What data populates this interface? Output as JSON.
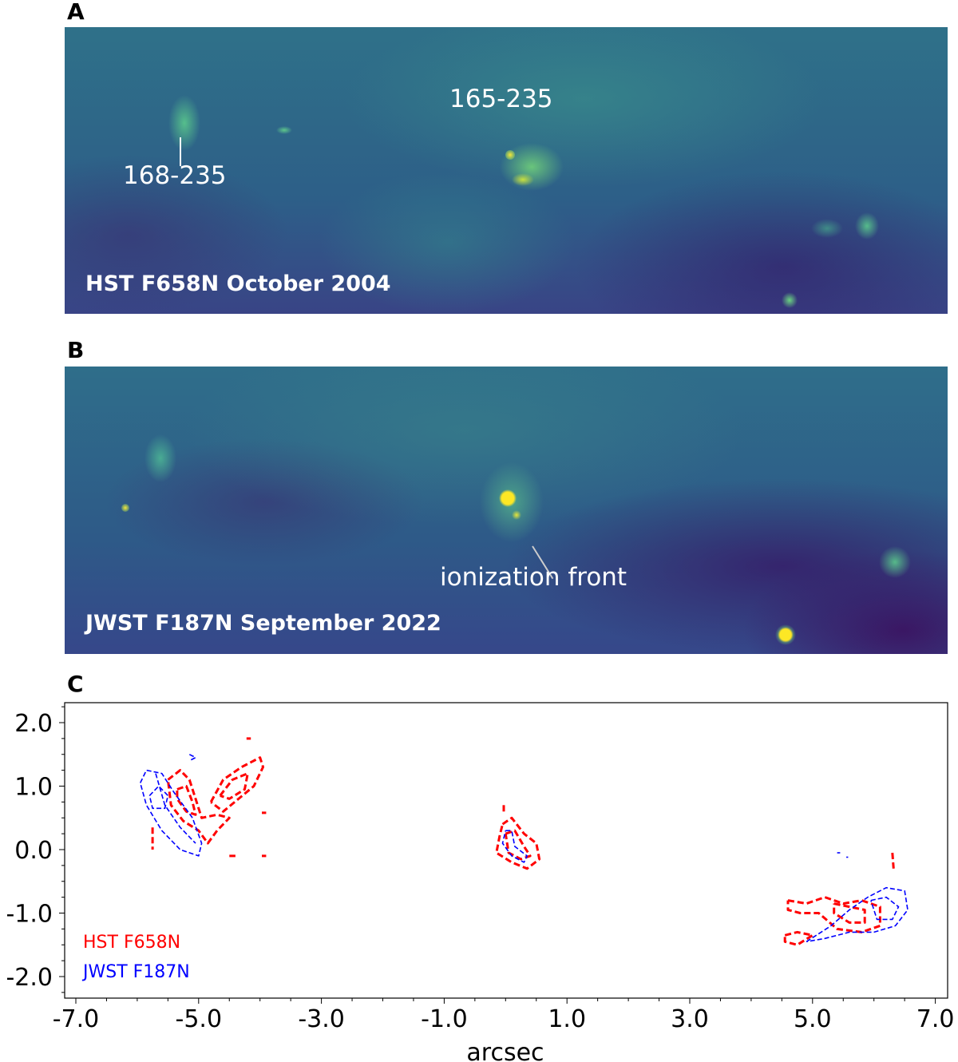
{
  "panels": {
    "a": {
      "letter": "A",
      "caption": "HST F658N October 2004",
      "labels": [
        "165-235",
        "168-235"
      ]
    },
    "b": {
      "letter": "B",
      "caption": "JWST F187N September 2022",
      "labels": [
        "ionization front"
      ]
    },
    "c": {
      "letter": "C"
    }
  },
  "colors": {
    "hst": "#ff0000",
    "jwst": "#0000ff"
  },
  "chart_data": {
    "type": "contour",
    "xlabel": "arcsec",
    "ylabel": "",
    "xlim": [
      -7.2,
      7.2
    ],
    "ylim": [
      -2.35,
      2.35
    ],
    "xticks": [
      "-7.0",
      "-5.0",
      "-3.0",
      "-1.0",
      "1.0",
      "3.0",
      "5.0",
      "7.0"
    ],
    "yticks": [
      "2.0",
      "1.0",
      "0.0",
      "-1.0",
      "-2.0"
    ],
    "grid": false,
    "legend": "bottom-left",
    "series": [
      {
        "name": "HST F658N",
        "color": "#ff0000",
        "contours": [
          [
            [
              -5.5,
              1.1
            ],
            [
              -5.3,
              1.25
            ],
            [
              -5.15,
              1.1
            ],
            [
              -5.05,
              0.8
            ],
            [
              -4.95,
              0.5
            ],
            [
              -4.7,
              0.55
            ],
            [
              -4.5,
              0.5
            ],
            [
              -4.7,
              0.3
            ],
            [
              -4.85,
              0.1
            ],
            [
              -5.0,
              0.3
            ],
            [
              -5.25,
              0.45
            ],
            [
              -5.45,
              0.7
            ],
            [
              -5.5,
              1.1
            ]
          ],
          [
            [
              -5.35,
              0.95
            ],
            [
              -5.2,
              1.0
            ],
            [
              -5.1,
              0.75
            ],
            [
              -5.05,
              0.55
            ],
            [
              -5.2,
              0.6
            ],
            [
              -5.35,
              0.8
            ],
            [
              -5.35,
              0.95
            ]
          ],
          [
            [
              -4.8,
              0.75
            ],
            [
              -4.6,
              1.1
            ],
            [
              -4.3,
              1.3
            ],
            [
              -4.0,
              1.45
            ],
            [
              -3.95,
              1.3
            ],
            [
              -4.1,
              1.0
            ],
            [
              -4.35,
              0.8
            ],
            [
              -4.6,
              0.6
            ],
            [
              -4.8,
              0.75
            ]
          ],
          [
            [
              -4.65,
              0.85
            ],
            [
              -4.45,
              1.1
            ],
            [
              -4.2,
              1.2
            ],
            [
              -4.25,
              0.95
            ],
            [
              -4.5,
              0.8
            ],
            [
              -4.65,
              0.85
            ]
          ],
          [
            [
              -5.75,
              0.35
            ],
            [
              -5.75,
              0.0
            ]
          ],
          [
            [
              -4.22,
              1.75
            ],
            [
              -4.15,
              1.75
            ]
          ],
          [
            [
              -3.97,
              0.58
            ],
            [
              -3.9,
              0.58
            ]
          ],
          [
            [
              -4.5,
              -0.1
            ],
            [
              -4.4,
              -0.1
            ]
          ],
          [
            [
              -3.97,
              -0.1
            ],
            [
              -3.9,
              -0.1
            ]
          ],
          [
            [
              -0.05,
              0.4
            ],
            [
              0.1,
              0.5
            ],
            [
              0.3,
              0.25
            ],
            [
              0.5,
              0.1
            ],
            [
              0.55,
              -0.15
            ],
            [
              0.35,
              -0.3
            ],
            [
              0.1,
              -0.2
            ],
            [
              -0.15,
              -0.05
            ],
            [
              -0.1,
              0.2
            ],
            [
              -0.05,
              0.4
            ]
          ],
          [
            [
              0.0,
              0.25
            ],
            [
              0.15,
              0.3
            ],
            [
              0.3,
              0.05
            ],
            [
              0.4,
              -0.1
            ],
            [
              0.25,
              -0.15
            ],
            [
              0.05,
              -0.05
            ],
            [
              0.0,
              0.25
            ]
          ],
          [
            [
              -0.03,
              0.7
            ],
            [
              -0.03,
              0.6
            ]
          ],
          [
            [
              4.6,
              -0.8
            ],
            [
              4.9,
              -0.85
            ],
            [
              5.2,
              -0.75
            ],
            [
              5.5,
              -0.85
            ],
            [
              5.8,
              -0.8
            ],
            [
              6.1,
              -0.9
            ],
            [
              6.1,
              -1.2
            ],
            [
              5.8,
              -1.3
            ],
            [
              5.4,
              -1.25
            ],
            [
              5.1,
              -1.0
            ],
            [
              4.8,
              -1.0
            ],
            [
              4.6,
              -0.95
            ],
            [
              4.6,
              -0.8
            ]
          ],
          [
            [
              5.35,
              -0.85
            ],
            [
              5.6,
              -0.9
            ],
            [
              5.85,
              -0.95
            ],
            [
              5.85,
              -1.15
            ],
            [
              5.6,
              -1.15
            ],
            [
              5.35,
              -1.0
            ],
            [
              5.35,
              -0.85
            ]
          ],
          [
            [
              4.55,
              -1.35
            ],
            [
              4.75,
              -1.3
            ],
            [
              5.0,
              -1.35
            ],
            [
              4.75,
              -1.5
            ],
            [
              4.55,
              -1.45
            ],
            [
              4.55,
              -1.35
            ]
          ],
          [
            [
              6.3,
              -0.05
            ],
            [
              6.32,
              -0.3
            ]
          ]
        ]
      },
      {
        "name": "JWST F187N",
        "color": "#0000ff",
        "contours": [
          [
            [
              -5.95,
              1.05
            ],
            [
              -5.85,
              1.25
            ],
            [
              -5.6,
              1.2
            ],
            [
              -5.4,
              0.9
            ],
            [
              -5.1,
              0.5
            ],
            [
              -4.95,
              0.1
            ],
            [
              -5.0,
              -0.1
            ],
            [
              -5.3,
              0.0
            ],
            [
              -5.6,
              0.3
            ],
            [
              -5.85,
              0.7
            ],
            [
              -5.95,
              1.05
            ]
          ],
          [
            [
              -5.8,
              0.85
            ],
            [
              -5.65,
              1.0
            ],
            [
              -5.5,
              0.85
            ],
            [
              -5.55,
              0.65
            ],
            [
              -5.75,
              0.65
            ],
            [
              -5.8,
              0.85
            ]
          ],
          [
            [
              -5.7,
              1.2
            ],
            [
              -5.55,
              0.7
            ],
            [
              -5.3,
              0.35
            ],
            [
              -5.05,
              0.1
            ]
          ],
          [
            [
              -5.15,
              1.5
            ],
            [
              -5.05,
              1.45
            ],
            [
              -5.15,
              1.4
            ]
          ],
          [
            [
              0.0,
              0.3
            ],
            [
              0.1,
              0.3
            ],
            [
              0.15,
              0.05
            ],
            [
              0.35,
              -0.1
            ],
            [
              0.3,
              -0.2
            ],
            [
              0.1,
              -0.1
            ],
            [
              -0.05,
              0.1
            ],
            [
              0.0,
              0.3
            ]
          ],
          [
            [
              4.9,
              -1.45
            ],
            [
              5.3,
              -1.2
            ],
            [
              5.6,
              -0.95
            ],
            [
              5.9,
              -0.75
            ],
            [
              6.2,
              -0.6
            ],
            [
              6.5,
              -0.65
            ],
            [
              6.55,
              -0.95
            ],
            [
              6.35,
              -1.2
            ],
            [
              6.0,
              -1.3
            ],
            [
              5.6,
              -1.3
            ],
            [
              5.2,
              -1.4
            ],
            [
              4.9,
              -1.45
            ]
          ],
          [
            [
              5.95,
              -0.8
            ],
            [
              6.2,
              -0.75
            ],
            [
              6.4,
              -0.9
            ],
            [
              6.3,
              -1.1
            ],
            [
              6.05,
              -1.1
            ],
            [
              5.95,
              -0.8
            ]
          ],
          [
            [
              5.4,
              -0.05
            ],
            [
              5.45,
              -0.05
            ]
          ],
          [
            [
              5.55,
              -0.12
            ],
            [
              5.58,
              -0.12
            ]
          ]
        ]
      }
    ]
  }
}
